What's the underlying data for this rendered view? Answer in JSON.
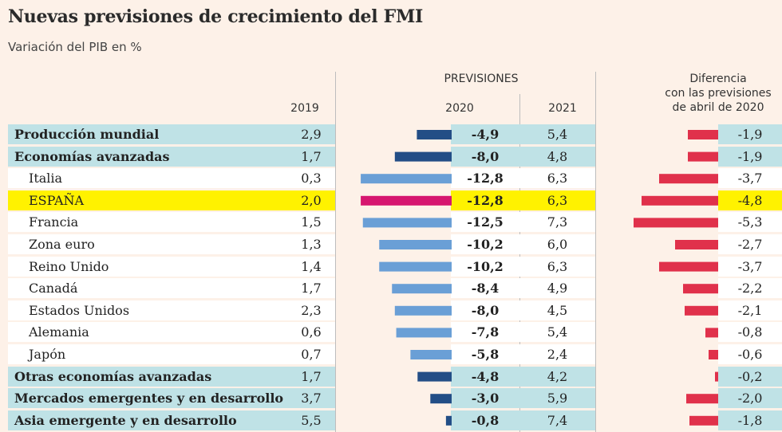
{
  "title": "Nuevas previsiones de crecimiento del  FMI",
  "subtitle": "Variación del PIB en %",
  "headers": {
    "previsiones": "PREVISIONES",
    "y2019": "2019",
    "y2020": "2020",
    "y2021": "2021",
    "diferencia_l1": "Diferencia",
    "diferencia_l2": "con las previsiones",
    "diferencia_l3": "de abril de 2020"
  },
  "colors": {
    "background": "#fdf1e8",
    "group_row": "#bfe2e6",
    "sub_row": "#ffffff",
    "highlight_row": "#fff200",
    "bar_group": "#234e86",
    "bar_country": "#6a9fd6",
    "bar_spain": "#d6166f",
    "bar_diff": "#e0314b"
  },
  "chart_data": {
    "type": "table",
    "columns": [
      "2019",
      "2020",
      "2021",
      "Diferencia con las previsiones de abril de 2020"
    ],
    "rows": [
      {
        "name": "Producción mundial",
        "kind": "group",
        "v2019": "2,9",
        "v2020": "-4,9",
        "v2021": "5,4",
        "diff": "-1,9",
        "n2020": -4.9,
        "ndiff": -1.9
      },
      {
        "name": "Economías avanzadas",
        "kind": "group",
        "v2019": "1,7",
        "v2020": "-8,0",
        "v2021": "4,8",
        "diff": "-1,9",
        "n2020": -8.0,
        "ndiff": -1.9
      },
      {
        "name": "Italia",
        "kind": "country",
        "v2019": "0,3",
        "v2020": "-12,8",
        "v2021": "6,3",
        "diff": "-3,7",
        "n2020": -12.8,
        "ndiff": -3.7
      },
      {
        "name": "ESPAÑA",
        "kind": "highlight",
        "v2019": "2,0",
        "v2020": "-12,8",
        "v2021": "6,3",
        "diff": "-4,8",
        "n2020": -12.8,
        "ndiff": -4.8
      },
      {
        "name": "Francia",
        "kind": "country",
        "v2019": "1,5",
        "v2020": "-12,5",
        "v2021": "7,3",
        "diff": "-5,3",
        "n2020": -12.5,
        "ndiff": -5.3
      },
      {
        "name": "Zona euro",
        "kind": "country",
        "v2019": "1,3",
        "v2020": "-10,2",
        "v2021": "6,0",
        "diff": "-2,7",
        "n2020": -10.2,
        "ndiff": -2.7
      },
      {
        "name": "Reino Unido",
        "kind": "country",
        "v2019": "1,4",
        "v2020": "-10,2",
        "v2021": "6,3",
        "diff": "-3,7",
        "n2020": -10.2,
        "ndiff": -3.7
      },
      {
        "name": "Canadá",
        "kind": "country",
        "v2019": "1,7",
        "v2020": "-8,4",
        "v2021": "4,9",
        "diff": "-2,2",
        "n2020": -8.4,
        "ndiff": -2.2
      },
      {
        "name": "Estados Unidos",
        "kind": "country",
        "v2019": "2,3",
        "v2020": "-8,0",
        "v2021": "4,5",
        "diff": "-2,1",
        "n2020": -8.0,
        "ndiff": -2.1
      },
      {
        "name": "Alemania",
        "kind": "country",
        "v2019": "0,6",
        "v2020": "-7,8",
        "v2021": "5,4",
        "diff": "-0,8",
        "n2020": -7.8,
        "ndiff": -0.8
      },
      {
        "name": "Japón",
        "kind": "country",
        "v2019": "0,7",
        "v2020": "-5,8",
        "v2021": "2,4",
        "diff": "-0,6",
        "n2020": -5.8,
        "ndiff": -0.6
      },
      {
        "name": "Otras economías avanzadas",
        "kind": "group",
        "v2019": "1,7",
        "v2020": "-4,8",
        "v2021": "4,2",
        "diff": "-0,2",
        "n2020": -4.8,
        "ndiff": -0.2
      },
      {
        "name": "Mercados emergentes y en desarrollo",
        "kind": "group",
        "v2019": "3,7",
        "v2020": "-3,0",
        "v2021": "5,9",
        "diff": "-2,0",
        "n2020": -3.0,
        "ndiff": -2.0
      },
      {
        "name": "Asia emergente y en desarrollo",
        "kind": "group",
        "v2019": "5,5",
        "v2020": "-0,8",
        "v2021": "7,4",
        "diff": "-1,8",
        "n2020": -0.8,
        "ndiff": -1.8
      }
    ]
  }
}
